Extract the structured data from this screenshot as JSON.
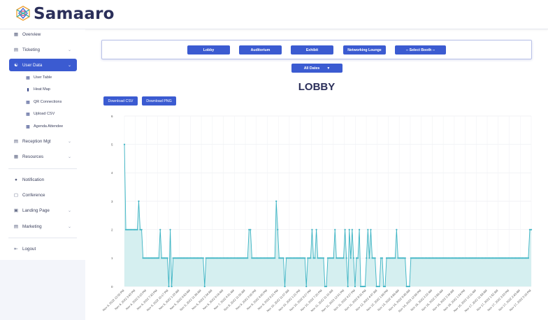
{
  "app": {
    "brand": "Samaaro"
  },
  "sidebar": {
    "items": [
      {
        "label": "Overview",
        "icon": "grid-icon",
        "chevron": false,
        "active": false
      },
      {
        "label": "Ticketing",
        "icon": "ticket-icon",
        "chevron": true,
        "active": false
      },
      {
        "label": "User Data",
        "icon": "users-icon",
        "chevron": true,
        "active": true
      }
    ],
    "sub_items": [
      {
        "label": "User Table",
        "icon": "table-icon"
      },
      {
        "label": "Heat Map",
        "icon": "document-icon"
      },
      {
        "label": "QR Connections",
        "icon": "grid-icon"
      },
      {
        "label": "Upload CSV",
        "icon": "grid-icon"
      },
      {
        "label": "Agenda Attendee",
        "icon": "calendar-icon"
      }
    ],
    "items2": [
      {
        "label": "Reception Mgt",
        "icon": "reception-icon",
        "chevron": true
      },
      {
        "label": "Resources",
        "icon": "resources-icon",
        "chevron": true
      }
    ],
    "items3": [
      {
        "label": "Notification",
        "icon": "bell-icon",
        "chevron": false
      },
      {
        "label": "Conference",
        "icon": "conference-icon",
        "chevron": false
      },
      {
        "label": "Landing Page",
        "icon": "landing-page-icon",
        "chevron": true
      },
      {
        "label": "Marketing",
        "icon": "marketing-icon",
        "chevron": true
      }
    ],
    "logout": {
      "label": "Logout",
      "icon": "logout-icon"
    }
  },
  "toolbar": {
    "buttons": [
      "Lobby",
      "Auditorium",
      "Exhibit",
      "Networking Lounge",
      "-- Select Booth --"
    ],
    "dates_label": "All Dates",
    "download_csv": "Download CSV",
    "download_png": "Download PNG"
  },
  "page_title": "LOBBY",
  "colors": {
    "accent": "#3b5bd1",
    "line": "#3bb3c3",
    "fill": "#d5eff0",
    "title": "#2b2f5a"
  },
  "chart_data": {
    "type": "area",
    "title": "LOBBY",
    "ylim": [
      0,
      6
    ],
    "y_ticks": [
      0,
      1,
      2,
      3,
      4,
      5,
      6
    ],
    "grid": true,
    "x_tick_labels": [
      "Nov 4, 2022 12:00 PM",
      "Nov 4, 2022 3:43 PM",
      "Nov 4, 2022 5:15 PM",
      "Nov 4, 2022 7:43 PM",
      "Nov 4, 2022 10:17 PM",
      "Nov 5, 2022 1:23 AM",
      "Nov 5, 2022 6:53 AM",
      "Nov 5, 2022 11:36 AM",
      "Nov 6, 2022 2:34 AM",
      "Nov 6, 2022 9:16 AM",
      "Nov 7, 2022 4:31 AM",
      "Nov 8, 2022 11:00 AM",
      "Nov 9, 2022 2:00 PM",
      "Nov 9, 2022 4:00 PM",
      "Nov 9, 2022 6:21 PM",
      "Nov 10, 2022 11:07 AM",
      "Nov 10, 2022 1:21 PM",
      "Nov 10, 2022 6:27 PM",
      "Nov 10, 2022 7:20 PM",
      "Nov 11, 2022 11:10 AM",
      "Nov 11, 2022 12:01 PM",
      "Nov 11, 2022 4:27 PM",
      "Nov 11, 2022 8:31 PM",
      "Nov 12, 2022 4:47 AM",
      "Nov 12, 2022 1:56 PM",
      "Nov 13, 2022 4:56 AM",
      "Nov 14, 2022 9:45 AM",
      "Nov 14, 2022 12:56 PM",
      "Nov 15, 2022 2:22 AM",
      "Nov 15, 2022 3:56 AM",
      "Nov 16, 2022 2:34 AM",
      "Nov 16, 2022 1:34 PM",
      "Nov 16, 2022 12:11 AM",
      "Nov 17, 2022 11:58 AM",
      "Nov 17, 2022 1:52 AM",
      "Nov 17, 2022 3:33 PM",
      "Nov 17, 2022 2:43 AM",
      "Nov 17, 2022 3:16 PM"
    ],
    "series": [
      {
        "values": [
          5,
          2,
          2,
          2,
          2,
          2,
          2,
          2,
          2,
          2,
          3,
          2,
          2,
          1,
          1,
          1,
          1,
          1,
          1,
          1,
          1,
          1,
          1,
          1,
          1,
          2,
          1,
          1,
          1,
          1,
          1,
          0,
          2,
          0,
          1,
          1,
          1,
          1,
          1,
          1,
          1,
          1,
          1,
          1,
          1,
          1,
          1,
          1,
          1,
          1,
          1,
          1,
          1,
          1,
          1,
          1,
          0,
          1,
          1,
          1,
          1,
          1,
          1,
          1,
          1,
          1,
          1,
          1,
          1,
          1,
          1,
          1,
          1,
          1,
          1,
          1,
          1,
          1,
          1,
          1,
          1,
          1,
          1,
          1,
          1,
          1,
          1,
          2,
          2,
          1,
          1,
          1,
          1,
          1,
          1,
          1,
          1,
          1,
          1,
          1,
          1,
          1,
          1,
          1,
          1,
          1,
          3,
          2,
          1,
          1,
          1,
          1,
          0,
          1,
          1,
          1,
          1,
          1,
          1,
          1,
          1,
          1,
          1,
          1,
          1,
          1,
          1,
          0,
          1,
          1,
          1,
          2,
          1,
          1,
          2,
          1,
          1,
          1,
          1,
          1,
          0,
          0,
          1,
          1,
          1,
          1,
          1,
          2,
          1,
          1,
          1,
          1,
          1,
          1,
          2,
          1,
          0,
          2,
          1,
          2,
          1,
          0,
          1,
          1,
          2,
          0,
          0,
          0,
          0,
          1,
          2,
          1,
          2,
          1,
          1,
          1,
          0,
          0,
          0,
          1,
          1,
          0,
          0,
          1,
          1,
          1,
          1,
          1,
          1,
          1,
          2,
          1,
          1,
          1,
          1,
          1,
          1,
          0,
          0,
          0,
          1,
          1,
          1,
          1,
          1,
          1,
          1,
          1,
          1,
          1,
          1,
          1,
          1,
          1,
          1,
          1,
          1,
          1,
          1,
          1,
          1,
          1,
          1,
          1,
          1,
          1,
          1,
          1,
          1,
          1,
          1,
          1,
          1,
          1,
          1,
          1,
          1,
          1,
          1,
          1,
          1,
          1,
          1,
          1,
          1,
          1,
          1,
          1,
          1,
          1,
          1,
          1,
          1,
          1,
          1,
          1,
          1,
          1,
          1,
          1,
          1,
          1,
          1,
          1,
          1,
          1,
          1,
          1,
          1,
          1,
          1,
          1,
          1,
          1,
          1,
          1,
          1,
          1,
          1,
          1,
          1,
          1,
          1,
          2,
          2
        ]
      }
    ]
  }
}
